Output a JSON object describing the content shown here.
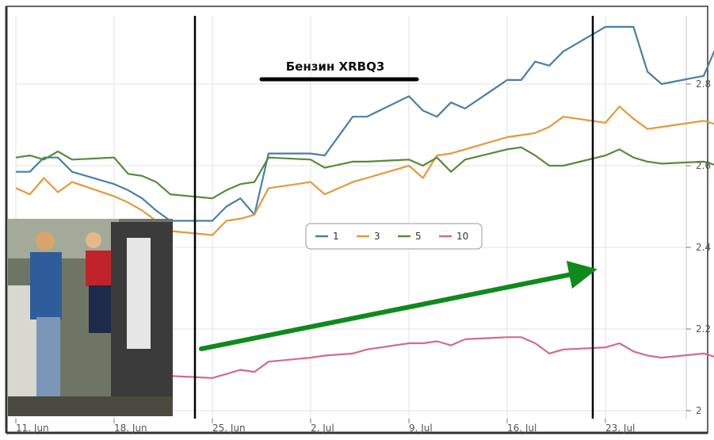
{
  "chart_data": {
    "type": "line",
    "title": "Бензин XRBQ3",
    "xlabel": "",
    "ylabel": "",
    "x_tick_labels": [
      "11. Jun",
      "18. Jun",
      "25. Jun",
      "2. Jul",
      "9. Jul",
      "16. Jul",
      "23. Jul"
    ],
    "y_tick_labels": [
      "2",
      "2.2",
      "2.4",
      "2.6",
      "2.8"
    ],
    "ylim": [
      2.0,
      2.95
    ],
    "grid": true,
    "legend_position": "center-right",
    "photo_inset": "people-at-gas-pump",
    "annotations": [
      "vertical-line-25-Jun",
      "vertical-line-23-Jul",
      "green-trend-arrow",
      "title-underline"
    ],
    "x": [
      "2012-06-11",
      "2012-06-12",
      "2012-06-13",
      "2012-06-14",
      "2012-06-15",
      "2012-06-18",
      "2012-06-19",
      "2012-06-20",
      "2012-06-21",
      "2012-06-22",
      "2012-06-25",
      "2012-06-26",
      "2012-06-27",
      "2012-06-28",
      "2012-06-29",
      "2012-07-02",
      "2012-07-03",
      "2012-07-05",
      "2012-07-06",
      "2012-07-09",
      "2012-07-10",
      "2012-07-11",
      "2012-07-12",
      "2012-07-13",
      "2012-07-16",
      "2012-07-17",
      "2012-07-18",
      "2012-07-19",
      "2012-07-20",
      "2012-07-23",
      "2012-07-24",
      "2012-07-25",
      "2012-07-26",
      "2012-07-27",
      "2012-07-30",
      "2012-07-31"
    ],
    "series": [
      {
        "name": "1",
        "color": "#4a7fa7",
        "values": [
          2.585,
          2.585,
          2.62,
          2.62,
          2.585,
          2.555,
          2.54,
          2.52,
          2.49,
          2.465,
          2.465,
          2.5,
          2.52,
          2.48,
          2.63,
          2.63,
          2.625,
          2.72,
          2.72,
          2.77,
          2.735,
          2.72,
          2.755,
          2.74,
          2.81,
          2.81,
          2.855,
          2.845,
          2.88,
          2.94,
          2.94,
          2.94,
          2.83,
          2.8,
          2.82,
          2.9
        ]
      },
      {
        "name": "3",
        "color": "#e39a3c",
        "values": [
          2.545,
          2.53,
          2.57,
          2.535,
          2.56,
          2.525,
          2.51,
          2.49,
          2.465,
          2.44,
          2.43,
          2.465,
          2.47,
          2.48,
          2.545,
          2.56,
          2.53,
          2.56,
          2.57,
          2.6,
          2.57,
          2.625,
          2.63,
          2.64,
          2.67,
          2.675,
          2.68,
          2.695,
          2.72,
          2.705,
          2.745,
          2.715,
          2.69,
          2.695,
          2.71,
          2.7
        ]
      },
      {
        "name": "5",
        "color": "#5a8a3a",
        "values": [
          2.62,
          2.625,
          2.615,
          2.635,
          2.615,
          2.62,
          2.58,
          2.575,
          2.56,
          2.53,
          2.52,
          2.54,
          2.555,
          2.56,
          2.62,
          2.615,
          2.595,
          2.61,
          2.61,
          2.615,
          2.6,
          2.62,
          2.585,
          2.615,
          2.64,
          2.645,
          2.625,
          2.6,
          2.6,
          2.625,
          2.64,
          2.62,
          2.61,
          2.605,
          2.61,
          2.6
        ]
      },
      {
        "name": "10",
        "color": "#d16b8e",
        "values": [
          2.15,
          2.155,
          2.145,
          2.14,
          2.12,
          2.12,
          2.11,
          2.1,
          2.095,
          2.085,
          2.08,
          2.09,
          2.1,
          2.095,
          2.12,
          2.13,
          2.135,
          2.14,
          2.15,
          2.165,
          2.165,
          2.17,
          2.16,
          2.175,
          2.18,
          2.18,
          2.165,
          2.14,
          2.15,
          2.155,
          2.165,
          2.145,
          2.135,
          2.13,
          2.14,
          2.13
        ]
      }
    ]
  }
}
